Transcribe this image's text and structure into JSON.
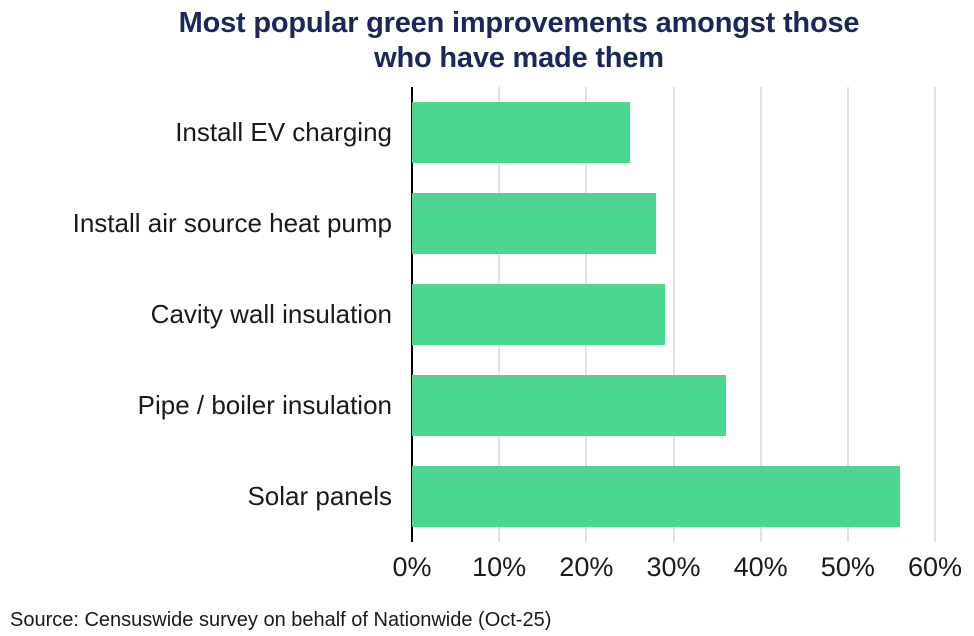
{
  "title": {
    "line1": "Most popular green improvements amongst those",
    "line2": "who have made them"
  },
  "source": "Source: Censuswide survey on behalf of Nationwide (Oct-25)",
  "colors": {
    "bar": "#4CD690",
    "title_text": "#1B2659",
    "axis": "#000000",
    "gridline": "#E2E2E2",
    "label_text": "#1A1A1A"
  },
  "chart_data": {
    "type": "bar",
    "orientation": "horizontal",
    "title": "Most popular green improvements amongst those who have made them",
    "categories": [
      "Install EV charging",
      "Install air source heat pump",
      "Cavity wall insulation",
      "Pipe / boiler insulation",
      "Solar panels"
    ],
    "values": [
      25,
      28,
      29,
      36,
      56
    ],
    "value_unit": "%",
    "xlabel": "",
    "ylabel": "",
    "xlim": [
      0,
      60
    ],
    "xticks": [
      {
        "value": 0,
        "label": "0%"
      },
      {
        "value": 10,
        "label": "10%"
      },
      {
        "value": 20,
        "label": "20%"
      },
      {
        "value": 30,
        "label": "30%"
      },
      {
        "value": 40,
        "label": "40%"
      },
      {
        "value": 50,
        "label": "50%"
      },
      {
        "value": 60,
        "label": "60%"
      }
    ],
    "grid": "vertical",
    "legend": false
  }
}
